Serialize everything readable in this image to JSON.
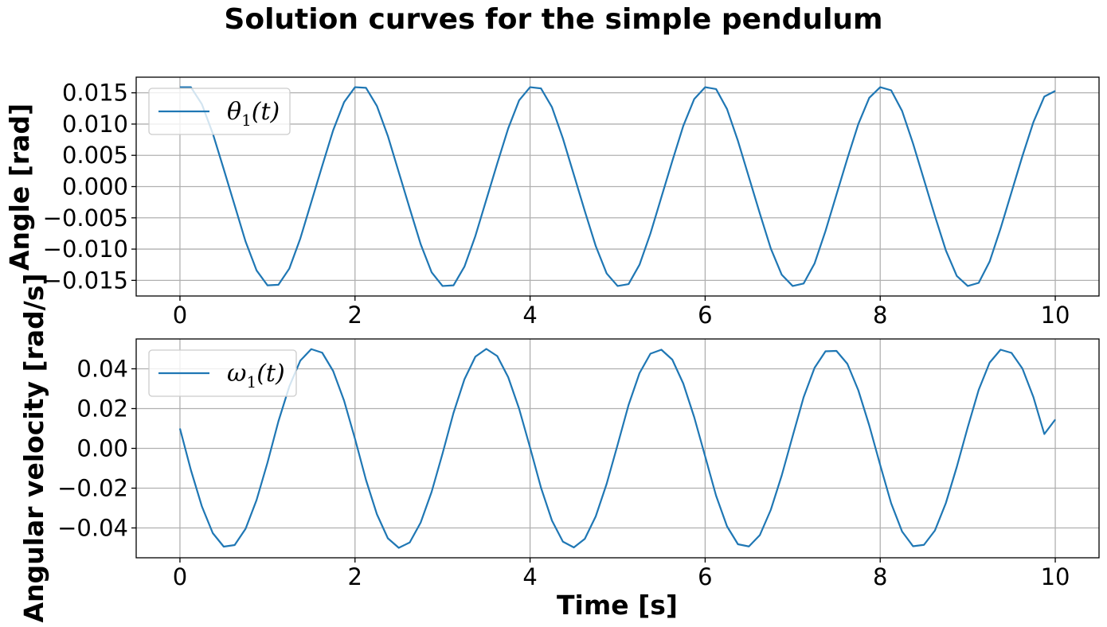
{
  "figure": {
    "suptitle": "Solution curves for the simple pendulum"
  },
  "chart_data": [
    {
      "type": "line",
      "title": "",
      "xlabel": "",
      "ylabel": "Angle [rad]",
      "xlim": [
        -0.5,
        10.5
      ],
      "ylim": [
        -0.0175,
        0.0175
      ],
      "xticks": [
        0,
        2,
        4,
        6,
        8,
        10
      ],
      "xtick_labels": [
        "0",
        "2",
        "4",
        "6",
        "8",
        "10"
      ],
      "yticks": [
        0.015,
        0.01,
        0.005,
        0.0,
        -0.005,
        -0.01,
        -0.015
      ],
      "ytick_labels": [
        "0.015",
        "0.010",
        "0.005",
        "0.000",
        "−0.005",
        "−0.010",
        "−0.015"
      ],
      "grid": true,
      "legend_position": "upper-left",
      "color": "#1f77b4",
      "series": [
        {
          "name": "θ1(t)",
          "legend_symbol": "θ",
          "legend_sub": "1",
          "legend_arg": "(t)",
          "x": [
            0.0,
            0.125,
            0.25,
            0.375,
            0.5,
            0.625,
            0.75,
            0.875,
            1.0,
            1.125,
            1.25,
            1.375,
            1.5,
            1.625,
            1.75,
            1.875,
            2.0,
            2.125,
            2.25,
            2.375,
            2.5,
            2.625,
            2.75,
            2.875,
            3.0,
            3.125,
            3.25,
            3.375,
            3.5,
            3.625,
            3.75,
            3.875,
            4.0,
            4.125,
            4.25,
            4.375,
            4.5,
            4.625,
            4.75,
            4.875,
            5.0,
            5.125,
            5.25,
            5.375,
            5.5,
            5.625,
            5.75,
            5.875,
            6.0,
            6.125,
            6.25,
            6.375,
            6.5,
            6.625,
            6.75,
            6.875,
            7.0,
            7.125,
            7.25,
            7.375,
            7.5,
            7.625,
            7.75,
            7.875,
            8.0,
            8.125,
            8.25,
            8.375,
            8.5,
            8.625,
            8.75,
            8.875,
            9.0,
            9.125,
            9.25,
            9.375,
            9.5,
            9.625,
            9.75,
            9.875,
            10.0
          ],
          "y": [
            0.0159,
            0.0159,
            0.0132,
            0.0085,
            0.0028,
            -0.003,
            -0.0088,
            -0.0134,
            -0.0158,
            -0.0157,
            -0.0131,
            -0.0083,
            -0.0025,
            0.0033,
            0.009,
            0.0135,
            0.0159,
            0.0158,
            0.0129,
            0.0081,
            0.0023,
            -0.0035,
            -0.0092,
            -0.0137,
            -0.0159,
            -0.0158,
            -0.0128,
            -0.0079,
            -0.0021,
            0.0037,
            0.0093,
            0.0138,
            0.0159,
            0.0157,
            0.0127,
            0.0077,
            0.0019,
            -0.0039,
            -0.0095,
            -0.0139,
            -0.0159,
            -0.0156,
            -0.0125,
            -0.0075,
            -0.0017,
            0.0041,
            0.0097,
            0.014,
            0.0159,
            0.0156,
            0.0124,
            0.0073,
            0.0015,
            -0.0043,
            -0.0099,
            -0.0141,
            -0.0159,
            -0.0155,
            -0.0123,
            -0.0071,
            -0.0013,
            0.0045,
            0.01,
            0.0142,
            0.0159,
            0.0154,
            0.0121,
            0.0069,
            0.0011,
            -0.0047,
            -0.0102,
            -0.0143,
            -0.0159,
            -0.0154,
            -0.012,
            -0.0067,
            -0.0009,
            0.0049,
            0.0103,
            0.0144,
            0.0153
          ]
        }
      ]
    },
    {
      "type": "line",
      "title": "",
      "xlabel": "Time [s]",
      "ylabel": "Angular velocity [rad/s]",
      "xlim": [
        -0.5,
        10.5
      ],
      "ylim": [
        -0.055,
        0.055
      ],
      "xticks": [
        0,
        2,
        4,
        6,
        8,
        10
      ],
      "xtick_labels": [
        "0",
        "2",
        "4",
        "6",
        "8",
        "10"
      ],
      "yticks": [
        0.04,
        0.02,
        0.0,
        -0.02,
        -0.04
      ],
      "ytick_labels": [
        "0.04",
        "0.02",
        "0.00",
        "−0.02",
        "−0.04"
      ],
      "grid": true,
      "legend_position": "upper-left",
      "color": "#1f77b4",
      "series": [
        {
          "name": "ω1(t)",
          "legend_symbol": "ω",
          "legend_sub": "1",
          "legend_arg": "(t)",
          "x": [
            0.0,
            0.125,
            0.25,
            0.375,
            0.5,
            0.625,
            0.75,
            0.875,
            1.0,
            1.125,
            1.25,
            1.375,
            1.5,
            1.625,
            1.75,
            1.875,
            2.0,
            2.125,
            2.25,
            2.375,
            2.5,
            2.625,
            2.75,
            2.875,
            3.0,
            3.125,
            3.25,
            3.375,
            3.5,
            3.625,
            3.75,
            3.875,
            4.0,
            4.125,
            4.25,
            4.375,
            4.5,
            4.625,
            4.75,
            4.875,
            5.0,
            5.125,
            5.25,
            5.375,
            5.5,
            5.625,
            5.75,
            5.875,
            6.0,
            6.125,
            6.25,
            6.375,
            6.5,
            6.625,
            6.75,
            6.875,
            7.0,
            7.125,
            7.25,
            7.375,
            7.5,
            7.625,
            7.75,
            7.875,
            8.0,
            8.125,
            8.25,
            8.375,
            8.5,
            8.625,
            8.75,
            8.875,
            9.0,
            9.125,
            9.25,
            9.375,
            9.5,
            9.625,
            9.75,
            9.875,
            10.0
          ],
          "y": [
            0.01,
            -0.0109,
            -0.0291,
            -0.0426,
            -0.0494,
            -0.0486,
            -0.0404,
            -0.026,
            -0.0072,
            0.0136,
            0.0312,
            0.0441,
            0.0499,
            0.0481,
            0.0389,
            0.024,
            0.0048,
            -0.0158,
            -0.0331,
            -0.0452,
            -0.05,
            -0.0473,
            -0.0373,
            -0.0219,
            -0.0026,
            0.0178,
            0.0347,
            0.0461,
            0.05,
            0.0464,
            0.0358,
            0.0199,
            0.0004,
            -0.0198,
            -0.0363,
            -0.0469,
            -0.0498,
            -0.0455,
            -0.0342,
            -0.0178,
            0.0018,
            0.0218,
            0.0378,
            0.0476,
            0.0496,
            0.0446,
            0.0326,
            0.0157,
            -0.004,
            -0.0238,
            -0.0392,
            -0.0482,
            -0.0493,
            -0.0436,
            -0.0309,
            -0.0136,
            0.0062,
            0.0257,
            0.0405,
            0.0488,
            0.049,
            0.0425,
            0.0292,
            0.0115,
            -0.0084,
            -0.0276,
            -0.0418,
            -0.0492,
            -0.0485,
            -0.0413,
            -0.0275,
            -0.0093,
            0.0106,
            0.0294,
            0.0431,
            0.0496,
            0.048,
            0.0401,
            0.0258,
            0.0072,
            0.0145
          ]
        }
      ]
    }
  ]
}
